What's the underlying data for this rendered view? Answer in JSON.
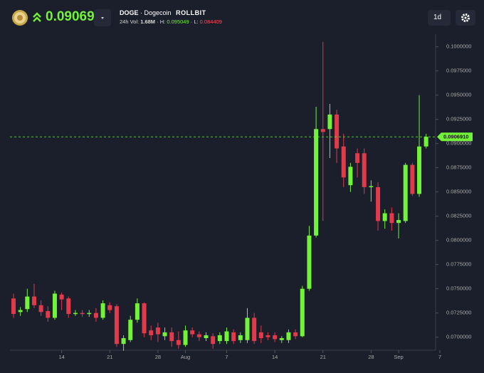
{
  "header": {
    "symbol": "DOGE",
    "name": "· Dogecoin",
    "brand": "ROLLBIT",
    "price": "0.090691",
    "vol_label": "24h Vol:",
    "vol": "1.68M",
    "high_label": "· H:",
    "high": "0.095049",
    "low_label": "· L:",
    "low": "0.084409",
    "timeframe": "1d"
  },
  "chart_data": {
    "type": "candlestick",
    "categories": [
      null,
      null,
      null,
      null,
      null,
      null,
      null,
      "14",
      null,
      null,
      null,
      null,
      null,
      null,
      "21",
      null,
      null,
      null,
      null,
      null,
      null,
      "28",
      null,
      null,
      null,
      "Aug",
      null,
      null,
      null,
      null,
      null,
      "7",
      null,
      null,
      null,
      null,
      null,
      null,
      "14",
      null,
      null,
      null,
      null,
      null,
      null,
      "21",
      null,
      null,
      null,
      null,
      null,
      null,
      "28",
      null,
      null,
      null,
      "Sep",
      null,
      null,
      null,
      null,
      null,
      "7"
    ],
    "open": [
      0.074,
      0.0726,
      0.0729,
      0.0742,
      0.0733,
      0.0727,
      0.072,
      0.0744,
      0.074,
      0.0724,
      0.0725,
      0.0724,
      0.0725,
      0.072,
      0.0733,
      0.0732,
      0.0693,
      0.0697,
      0.0718,
      0.0735,
      0.0707,
      0.071,
      0.0701,
      0.0705,
      0.0697,
      0.0692,
      0.0707,
      0.0703,
      0.0699,
      0.0701,
      0.0696,
      0.0696,
      0.0705,
      0.0697,
      0.0697,
      0.072,
      0.0705,
      0.0702,
      0.0702,
      0.0697,
      0.0697,
      0.0705,
      0.0701,
      0.075,
      0.0805,
      0.0915,
      0.0915,
      0.093,
      0.0897,
      0.0857,
      0.089,
      0.089,
      0.0855,
      0.0855,
      0.082,
      0.0828,
      0.0818,
      0.082,
      0.0878,
      0.0848,
      0.0897,
      null,
      null
    ],
    "high": [
      0.0745,
      0.0731,
      0.075,
      0.0755,
      0.0738,
      0.0732,
      0.0748,
      0.0746,
      0.0742,
      0.0728,
      0.0728,
      0.0728,
      0.073,
      0.0738,
      0.0736,
      0.0734,
      0.0702,
      0.0722,
      0.074,
      0.0736,
      0.0712,
      0.0715,
      0.071,
      0.071,
      0.0706,
      0.0712,
      0.071,
      0.0706,
      0.0705,
      0.0704,
      0.0705,
      0.071,
      0.0708,
      0.0705,
      0.073,
      0.0725,
      0.0712,
      0.0705,
      0.0705,
      0.0701,
      0.0708,
      0.0708,
      0.0753,
      0.0815,
      0.0938,
      0.1005,
      0.0941,
      0.0935,
      0.091,
      0.088,
      0.0895,
      0.0895,
      0.0862,
      0.086,
      0.0832,
      0.0834,
      0.0828,
      0.088,
      0.088,
      0.095,
      0.091,
      null,
      null
    ],
    "low": [
      0.072,
      0.0722,
      0.0726,
      0.073,
      0.0722,
      0.0716,
      0.0718,
      0.0728,
      0.072,
      0.0722,
      0.0721,
      0.0721,
      0.0716,
      0.0718,
      0.0725,
      0.069,
      0.0686,
      0.0695,
      0.0715,
      0.07,
      0.0697,
      0.0695,
      0.0697,
      0.069,
      0.0688,
      0.069,
      0.07,
      0.0696,
      0.0696,
      0.0688,
      0.0693,
      0.0693,
      0.0693,
      0.0694,
      0.0694,
      0.0693,
      0.0694,
      0.0697,
      0.0695,
      0.0694,
      0.0694,
      0.0698,
      0.07,
      0.0748,
      0.0803,
      0.082,
      0.0885,
      0.088,
      0.0855,
      0.085,
      0.0865,
      0.0848,
      0.084,
      0.081,
      0.0812,
      0.081,
      0.0802,
      0.0818,
      0.0846,
      0.0845,
      0.0895,
      null,
      null
    ],
    "close": [
      0.0724,
      0.0728,
      0.0742,
      0.0733,
      0.0726,
      0.072,
      0.0745,
      0.0739,
      0.0724,
      0.0725,
      0.0724,
      0.0725,
      0.072,
      0.0735,
      0.0728,
      0.0693,
      0.0699,
      0.0718,
      0.0735,
      0.0704,
      0.0702,
      0.0703,
      0.0705,
      0.0696,
      0.0692,
      0.0707,
      0.0703,
      0.07,
      0.0702,
      0.0693,
      0.0702,
      0.0706,
      0.0696,
      0.0702,
      0.072,
      0.0696,
      0.0699,
      0.07,
      0.0698,
      0.0699,
      0.0705,
      0.0701,
      0.075,
      0.0805,
      0.0915,
      0.0912,
      0.093,
      0.0895,
      0.0865,
      0.0876,
      0.088,
      0.0855,
      0.0856,
      0.082,
      0.0828,
      0.0818,
      0.0821,
      0.0878,
      0.0848,
      0.0897,
      0.0907,
      null,
      null
    ],
    "up_color": "#72f238",
    "down_color": "#e03a4b",
    "last_price": {
      "value": 0.090691,
      "label": "0.0906910"
    },
    "ylim": [
      0.0688,
      0.1013
    ],
    "yticks": [
      {
        "value": 0.07,
        "label": "0.0700000"
      },
      {
        "value": 0.0725,
        "label": "0.0725000"
      },
      {
        "value": 0.075,
        "label": "0.0750000"
      },
      {
        "value": 0.0775,
        "label": "0.0775000"
      },
      {
        "value": 0.08,
        "label": "0.0800000"
      },
      {
        "value": 0.0825,
        "label": "0.0825000"
      },
      {
        "value": 0.085,
        "label": "0.0850000"
      },
      {
        "value": 0.0875,
        "label": "0.0875000"
      },
      {
        "value": 0.09,
        "label": "0.0900000"
      },
      {
        "value": 0.0925,
        "label": "0.0925000"
      },
      {
        "value": 0.095,
        "label": "0.0950000"
      },
      {
        "value": 0.0975,
        "label": "0.0975000"
      },
      {
        "value": 0.1,
        "label": "0.1000000"
      }
    ]
  }
}
